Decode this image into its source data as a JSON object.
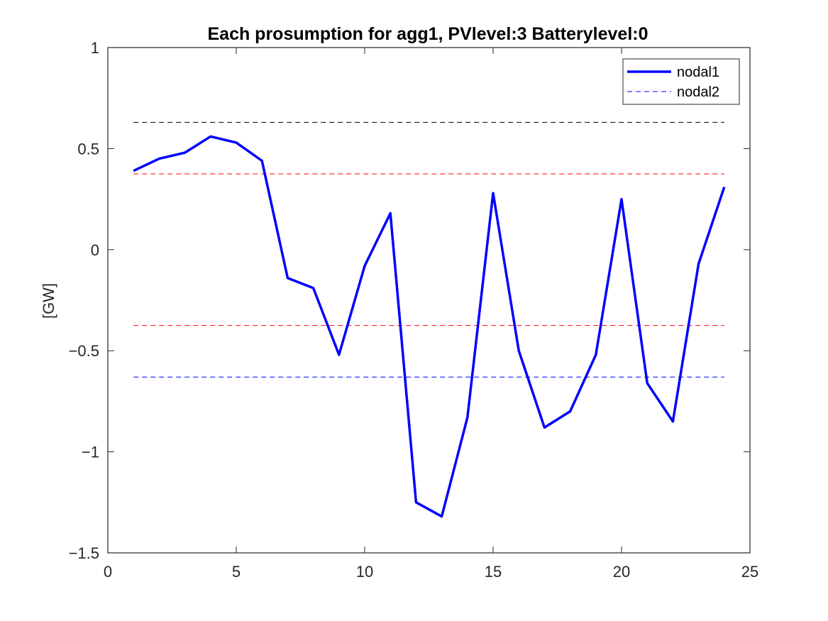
{
  "chart_data": {
    "type": "line",
    "title": "Each prosumption for agg1, PVlevel:3 Batterylevel:0",
    "xlabel": "",
    "ylabel": "[GW]",
    "xlim": [
      0,
      25
    ],
    "ylim": [
      -1.5,
      1
    ],
    "x_ticks": [
      0,
      5,
      10,
      15,
      20,
      25
    ],
    "x_tick_labels": [
      "0",
      "5",
      "10",
      "15",
      "20",
      "25"
    ],
    "y_ticks": [
      1,
      0.5,
      0,
      -0.5,
      -1,
      -1.5
    ],
    "y_tick_labels": [
      "1",
      "0.5",
      "0",
      "−0.5",
      "−1",
      "−1.5"
    ],
    "grid": false,
    "legend_position": "top-right",
    "series": [
      {
        "name": "nodal1",
        "style": "solid",
        "color": "#0000ff",
        "x": [
          1,
          2,
          3,
          4,
          5,
          6,
          7,
          8,
          9,
          10,
          11,
          12,
          13,
          14,
          15,
          16,
          17,
          18,
          19,
          20,
          21,
          22,
          23,
          24
        ],
        "values": [
          0.39,
          0.45,
          0.48,
          0.56,
          0.53,
          0.44,
          -0.14,
          -0.19,
          -0.52,
          -0.08,
          0.18,
          -1.25,
          -1.32,
          -0.83,
          0.28,
          -0.5,
          -0.88,
          -0.8,
          -0.52,
          0.25,
          -0.66,
          -0.85,
          -0.07,
          0.31
        ]
      },
      {
        "name": "nodal2",
        "style": "dashed",
        "color": "#0000ff",
        "x": [
          1,
          24
        ],
        "values": [
          -0.63,
          -0.63
        ]
      }
    ],
    "reference_lines": [
      {
        "y": 0.63,
        "color": "#000000",
        "style": "dashed"
      },
      {
        "y": 0.375,
        "color": "#ff0000",
        "style": "dashed"
      },
      {
        "y": -0.375,
        "color": "#ff0000",
        "style": "dashed"
      }
    ]
  }
}
